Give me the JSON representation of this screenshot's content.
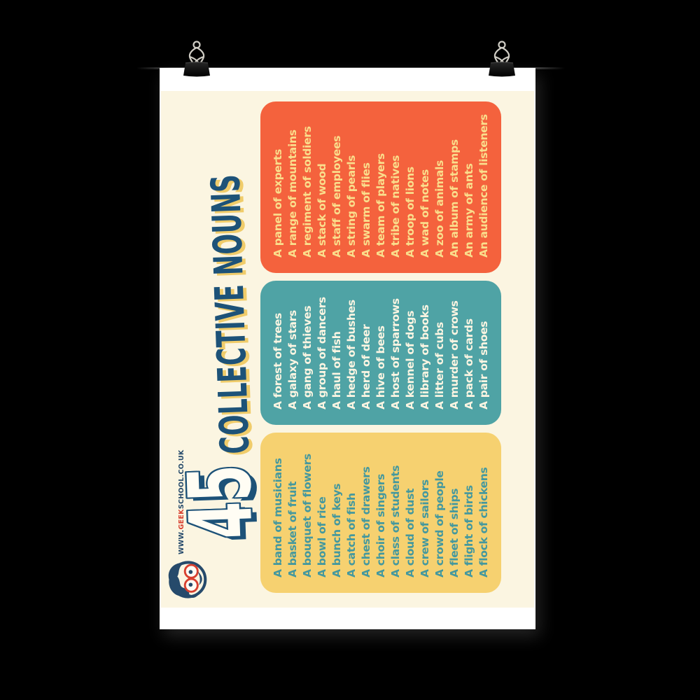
{
  "poster": {
    "title": {
      "number": "45",
      "words": "COLLECTIVE NOUNS"
    },
    "website": {
      "prefix": "WWW.",
      "brand": "GEEK",
      "suffix": "SCHOOL.CO.UK"
    },
    "panels": [
      {
        "name": "orange",
        "bg": "#f4623d",
        "text_color": "#fade8c",
        "items": [
          "A panel of experts",
          "A range of mountains",
          "A regiment of soldiers",
          "A stack of wood",
          "A staff of employees",
          "A string of pearls",
          "A swarm of flies",
          "A team of players",
          "A tribe of natives",
          "A troop of lions",
          "A wad of notes",
          "A zoo of animals",
          "An album of stamps",
          "An army of ants",
          "An audience of listeners"
        ]
      },
      {
        "name": "teal",
        "bg": "#4fa3a5",
        "text_color": "#fcf5e2",
        "items": [
          "A forest of trees",
          "A galaxy of stars",
          "A gang of thieves",
          "A group of dancers",
          "A haul of fish",
          "A hedge of bushes",
          "A herd of deer",
          "A hive of bees",
          "A host of sparrows",
          "A kennel of dogs",
          "A library of books",
          "A litter of cubs",
          "A murder of crows",
          "A pack of cards",
          "A pair of shoes"
        ]
      },
      {
        "name": "yellow",
        "bg": "#f6d170",
        "text_color": "#44989e",
        "items": [
          "A band of musicians",
          "A basket of fruit",
          "A bouquet of flowers",
          "A bowl of rice",
          "A bunch of keys",
          "A catch of fish",
          "A chest of drawers",
          "A choir of singers",
          "A class of students",
          "A cloud of dust",
          "A crew of sailors",
          "A crowd of people",
          "A fleet of ships",
          "A flight of birds",
          "A flock of chickens"
        ]
      }
    ],
    "colors": {
      "background": "#000000",
      "paper": "#ffffff",
      "cream": "#fbf5e1",
      "navy": "#1d5278",
      "logo_navy": "#264a6b",
      "red": "#d8402f",
      "title_shadow": "#f0cc6a"
    }
  }
}
